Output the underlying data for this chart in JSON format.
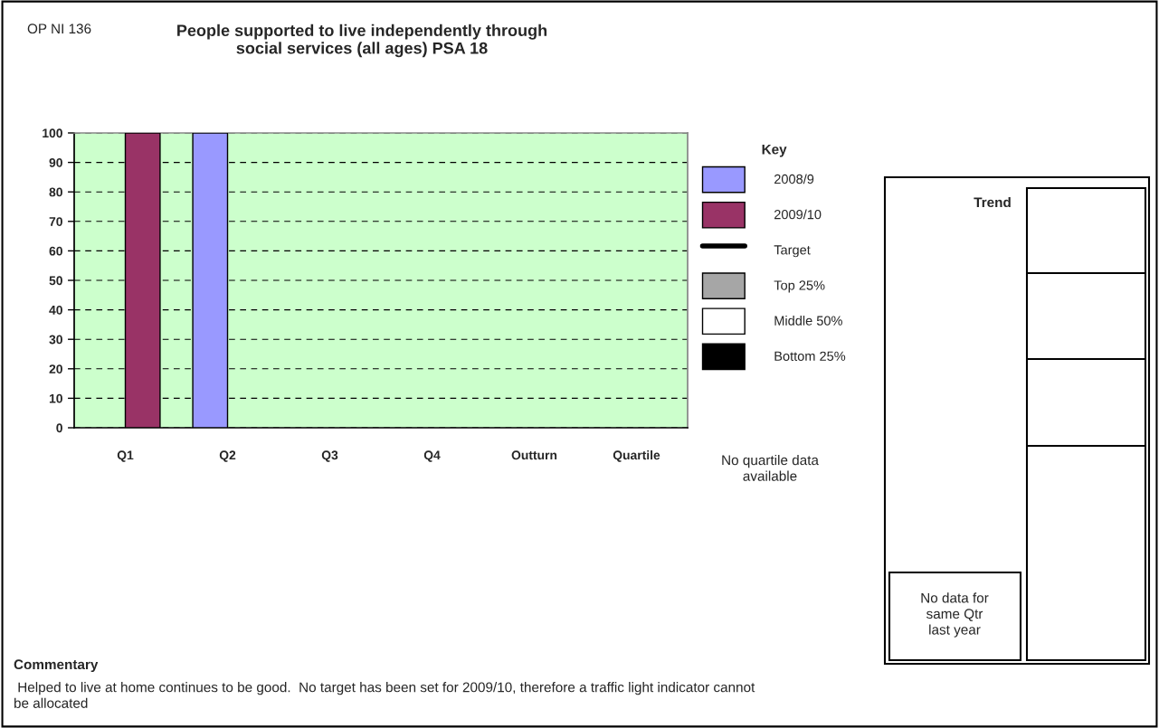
{
  "chart_data": {
    "type": "bar",
    "title": "People supported to live independently through\nsocial services (all ages) PSA 18",
    "categories": [
      "Q1",
      "Q2",
      "Q3",
      "Q4",
      "Outturn",
      "Quartile"
    ],
    "series": [
      {
        "name": "2008/9",
        "color": "#9999ff",
        "values": [
          null,
          100,
          null,
          null,
          null,
          null
        ]
      },
      {
        "name": "2009/10",
        "color": "#993366",
        "values": [
          100,
          null,
          null,
          null,
          null,
          null
        ]
      },
      {
        "name": "Target",
        "type": "line",
        "color": "#000000",
        "values": [
          null,
          null,
          null,
          null,
          null,
          null
        ]
      },
      {
        "name": "Top 25%",
        "color": "#a6a6a6",
        "values": [
          null,
          null,
          null,
          null,
          null,
          null
        ]
      },
      {
        "name": "Middle 50%",
        "color": "#ffffff",
        "values": [
          null,
          null,
          null,
          null,
          null,
          null
        ]
      },
      {
        "name": "Bottom 25%",
        "color": "#000000",
        "values": [
          null,
          null,
          null,
          null,
          null,
          null
        ]
      }
    ],
    "ylim": [
      0,
      100
    ],
    "yticks": [
      0,
      10,
      20,
      30,
      40,
      50,
      60,
      70,
      80,
      90,
      100
    ],
    "grid": "y",
    "legend": "right",
    "legend_title": "Key",
    "annotations": [
      "OP NI 136",
      "No quartile data\navailable",
      "Trend",
      "No data for\nsame Qtr\nlast year",
      "Commentary",
      " Helped to live at home continues to be good.  No target has been set for 2009/10, therefore a traffic light indicator cannot\nbe allocated"
    ]
  }
}
